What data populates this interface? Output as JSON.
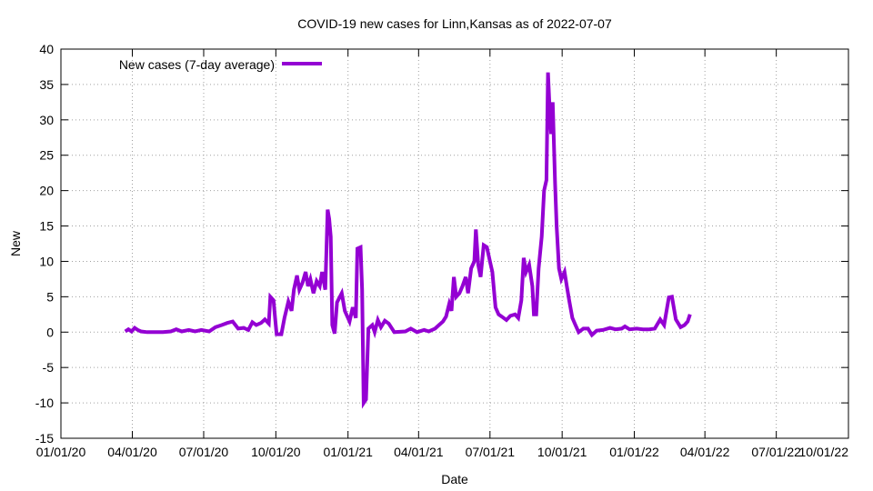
{
  "chart_data": {
    "type": "line",
    "title": "COVID-19 new cases for Linn,Kansas as of 2022-07-07",
    "xlabel": "Date",
    "ylabel": "New",
    "xlim": [
      "2020-01-01",
      "2022-10-01"
    ],
    "ylim": [
      -15,
      40
    ],
    "x_ticks": [
      {
        "date": "2020-01-01",
        "label": "01/01/20"
      },
      {
        "date": "2020-04-01",
        "label": "04/01/20"
      },
      {
        "date": "2020-07-01",
        "label": "07/01/20"
      },
      {
        "date": "2020-10-01",
        "label": "10/01/20"
      },
      {
        "date": "2021-01-01",
        "label": "01/01/21"
      },
      {
        "date": "2021-04-01",
        "label": "04/01/21"
      },
      {
        "date": "2021-07-01",
        "label": "07/01/21"
      },
      {
        "date": "2021-10-01",
        "label": "10/01/21"
      },
      {
        "date": "2022-01-01",
        "label": "01/01/22"
      },
      {
        "date": "2022-04-01",
        "label": "04/01/22"
      },
      {
        "date": "2022-07-01",
        "label": "07/01/22"
      },
      {
        "date": "2022-10-01",
        "label": "10/01/22"
      }
    ],
    "y_ticks": [
      -15,
      -10,
      -5,
      0,
      5,
      10,
      15,
      20,
      25,
      30,
      35,
      40
    ],
    "grid": true,
    "legend_position": "top-left",
    "series": [
      {
        "name": "New cases (7-day average)",
        "color": "#9400d3",
        "points": [
          [
            "2020-03-23",
            0.1
          ],
          [
            "2020-03-27",
            0.4
          ],
          [
            "2020-03-31",
            0.1
          ],
          [
            "2020-04-04",
            0.6
          ],
          [
            "2020-04-08",
            0.3
          ],
          [
            "2020-04-12",
            0.1
          ],
          [
            "2020-04-20",
            0.0
          ],
          [
            "2020-05-10",
            0.0
          ],
          [
            "2020-05-20",
            0.1
          ],
          [
            "2020-05-27",
            0.4
          ],
          [
            "2020-06-03",
            0.1
          ],
          [
            "2020-06-12",
            0.3
          ],
          [
            "2020-06-20",
            0.1
          ],
          [
            "2020-06-28",
            0.3
          ],
          [
            "2020-07-08",
            0.1
          ],
          [
            "2020-07-16",
            0.7
          ],
          [
            "2020-07-24",
            1.0
          ],
          [
            "2020-07-31",
            1.3
          ],
          [
            "2020-08-07",
            1.5
          ],
          [
            "2020-08-14",
            0.5
          ],
          [
            "2020-08-21",
            0.6
          ],
          [
            "2020-08-27",
            0.3
          ],
          [
            "2020-09-01",
            1.4
          ],
          [
            "2020-09-06",
            1.0
          ],
          [
            "2020-09-12",
            1.3
          ],
          [
            "2020-09-17",
            1.8
          ],
          [
            "2020-09-22",
            1.2
          ],
          [
            "2020-09-24",
            5.0
          ],
          [
            "2020-09-28",
            4.5
          ],
          [
            "2020-09-30",
            2.0
          ],
          [
            "2020-10-02",
            -0.3
          ],
          [
            "2020-10-08",
            -0.3
          ],
          [
            "2020-10-12",
            2.0
          ],
          [
            "2020-10-17",
            4.3
          ],
          [
            "2020-10-21",
            3.0
          ],
          [
            "2020-10-24",
            6.0
          ],
          [
            "2020-10-28",
            8.0
          ],
          [
            "2020-10-31",
            6.0
          ],
          [
            "2020-11-04",
            7.0
          ],
          [
            "2020-11-08",
            8.5
          ],
          [
            "2020-11-11",
            6.5
          ],
          [
            "2020-11-14",
            7.5
          ],
          [
            "2020-11-18",
            5.5
          ],
          [
            "2020-11-22",
            7.2
          ],
          [
            "2020-11-26",
            6.5
          ],
          [
            "2020-11-29",
            8.5
          ],
          [
            "2020-12-03",
            6.0
          ],
          [
            "2020-12-06",
            17.3
          ],
          [
            "2020-12-08",
            16.0
          ],
          [
            "2020-12-10",
            13.5
          ],
          [
            "2020-12-12",
            1.0
          ],
          [
            "2020-12-15",
            -0.2
          ],
          [
            "2020-12-18",
            4.2
          ],
          [
            "2020-12-24",
            5.5
          ],
          [
            "2020-12-28",
            3.0
          ],
          [
            "2021-01-03",
            1.5
          ],
          [
            "2021-01-07",
            3.5
          ],
          [
            "2021-01-11",
            2.0
          ],
          [
            "2021-01-13",
            11.8
          ],
          [
            "2021-01-17",
            12.0
          ],
          [
            "2021-01-19",
            6.0
          ],
          [
            "2021-01-21",
            -10.0
          ],
          [
            "2021-01-24",
            -9.5
          ],
          [
            "2021-01-27",
            0.5
          ],
          [
            "2021-02-01",
            1.0
          ],
          [
            "2021-02-04",
            0.0
          ],
          [
            "2021-02-08",
            1.7
          ],
          [
            "2021-02-12",
            0.7
          ],
          [
            "2021-02-17",
            1.6
          ],
          [
            "2021-02-22",
            1.2
          ],
          [
            "2021-03-01",
            0.0
          ],
          [
            "2021-03-15",
            0.1
          ],
          [
            "2021-03-22",
            0.5
          ],
          [
            "2021-03-30",
            0.0
          ],
          [
            "2021-04-08",
            0.3
          ],
          [
            "2021-04-14",
            0.1
          ],
          [
            "2021-04-22",
            0.5
          ],
          [
            "2021-04-27",
            1.0
          ],
          [
            "2021-05-02",
            1.5
          ],
          [
            "2021-05-06",
            2.2
          ],
          [
            "2021-05-10",
            4.0
          ],
          [
            "2021-05-13",
            3.0
          ],
          [
            "2021-05-16",
            7.8
          ],
          [
            "2021-05-19",
            5.0
          ],
          [
            "2021-05-23",
            5.5
          ],
          [
            "2021-05-27",
            6.5
          ],
          [
            "2021-05-31",
            7.8
          ],
          [
            "2021-06-03",
            5.5
          ],
          [
            "2021-06-07",
            9.0
          ],
          [
            "2021-06-11",
            10.0
          ],
          [
            "2021-06-13",
            14.5
          ],
          [
            "2021-06-16",
            9.5
          ],
          [
            "2021-06-19",
            7.8
          ],
          [
            "2021-06-23",
            12.3
          ],
          [
            "2021-06-27",
            12.0
          ],
          [
            "2021-07-01",
            10.0
          ],
          [
            "2021-07-04",
            8.5
          ],
          [
            "2021-07-08",
            3.5
          ],
          [
            "2021-07-12",
            2.5
          ],
          [
            "2021-07-16",
            2.2
          ],
          [
            "2021-07-22",
            1.7
          ],
          [
            "2021-07-27",
            2.3
          ],
          [
            "2021-08-02",
            2.5
          ],
          [
            "2021-08-06",
            2.0
          ],
          [
            "2021-08-10",
            4.5
          ],
          [
            "2021-08-13",
            10.5
          ],
          [
            "2021-08-16",
            8.5
          ],
          [
            "2021-08-20",
            9.5
          ],
          [
            "2021-08-24",
            6.5
          ],
          [
            "2021-08-26",
            2.5
          ],
          [
            "2021-08-29",
            2.5
          ],
          [
            "2021-09-01",
            9.0
          ],
          [
            "2021-09-05",
            13.5
          ],
          [
            "2021-09-08",
            20.0
          ],
          [
            "2021-09-11",
            21.5
          ],
          [
            "2021-09-13",
            36.7
          ],
          [
            "2021-09-15",
            31.5
          ],
          [
            "2021-09-17",
            28.0
          ],
          [
            "2021-09-19",
            32.5
          ],
          [
            "2021-09-22",
            21.0
          ],
          [
            "2021-09-24",
            15.0
          ],
          [
            "2021-09-27",
            9.0
          ],
          [
            "2021-09-30",
            7.5
          ],
          [
            "2021-10-04",
            8.5
          ],
          [
            "2021-10-07",
            6.5
          ],
          [
            "2021-10-10",
            4.5
          ],
          [
            "2021-10-14",
            2.0
          ],
          [
            "2021-10-18",
            1.0
          ],
          [
            "2021-10-22",
            0.0
          ],
          [
            "2021-10-28",
            0.5
          ],
          [
            "2021-11-03",
            0.5
          ],
          [
            "2021-11-08",
            -0.4
          ],
          [
            "2021-11-14",
            0.2
          ],
          [
            "2021-11-22",
            0.3
          ],
          [
            "2021-12-01",
            0.6
          ],
          [
            "2021-12-08",
            0.4
          ],
          [
            "2021-12-16",
            0.5
          ],
          [
            "2021-12-20",
            0.8
          ],
          [
            "2021-12-26",
            0.4
          ],
          [
            "2022-01-04",
            0.5
          ],
          [
            "2022-01-12",
            0.4
          ],
          [
            "2022-01-20",
            0.4
          ],
          [
            "2022-01-27",
            0.5
          ],
          [
            "2022-02-03",
            1.8
          ],
          [
            "2022-02-08",
            1.0
          ],
          [
            "2022-02-14",
            4.9
          ],
          [
            "2022-02-18",
            5.0
          ],
          [
            "2022-02-23",
            1.8
          ],
          [
            "2022-03-01",
            0.7
          ],
          [
            "2022-03-06",
            1.0
          ],
          [
            "2022-03-10",
            1.5
          ],
          [
            "2022-03-13",
            2.5
          ]
        ]
      }
    ]
  }
}
